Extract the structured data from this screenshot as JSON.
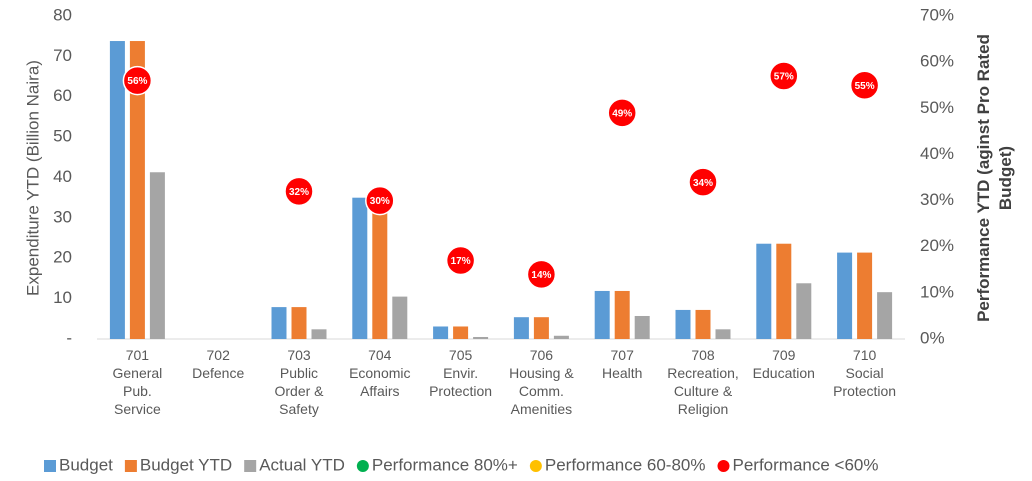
{
  "chart_data": {
    "type": "bar",
    "categories": [
      "701\nGeneral\nPub.\nService",
      "702\nDefence",
      "703\nPublic\nOrder &\nSafety",
      "704\nEconomic\nAffairs",
      "705\nEnvir.\nProtection",
      "706\nHousing &\nComm.\nAmenities",
      "707\nHealth",
      "708\nRecreation,\nCulture &\nReligion",
      "709\nEducation",
      "710\nSocial\nProtection"
    ],
    "ylabel": "Expenditure YTD (Billion Naira)",
    "y2label": "Performance YTD (aginst Pro Rated Budget)",
    "ylim": [
      0,
      80
    ],
    "yticks": [
      {
        "value": 0,
        "label": "-"
      },
      10,
      20,
      30,
      40,
      50,
      60,
      70,
      80
    ],
    "y2lim": [
      0,
      70
    ],
    "y2ticks": [
      {
        "value": 0,
        "label": "0%"
      },
      {
        "value": 10,
        "label": "10%"
      },
      {
        "value": 20,
        "label": "20%"
      },
      {
        "value": 30,
        "label": "30%"
      },
      {
        "value": 40,
        "label": "40%"
      },
      {
        "value": 50,
        "label": "50%"
      },
      {
        "value": 60,
        "label": "60%"
      },
      {
        "value": 70,
        "label": "70%"
      }
    ],
    "grid": false,
    "legend": "bottom",
    "series": [
      {
        "name": "Budget",
        "color": "#5b9bd5",
        "values": [
          73.8,
          0,
          7.9,
          35,
          3.1,
          5.4,
          11.9,
          7.2,
          23.6,
          21.4
        ]
      },
      {
        "name": "Budget YTD",
        "color": "#ed7d31",
        "values": [
          73.8,
          0,
          7.9,
          34.5,
          3.1,
          5.4,
          11.9,
          7.2,
          23.6,
          21.4
        ]
      },
      {
        "name": "Actual YTD",
        "color": "#a5a5a5",
        "values": [
          41.3,
          0,
          2.4,
          10.5,
          0.5,
          0.8,
          5.7,
          2.4,
          13.8,
          11.6
        ]
      },
      {
        "name": "Performance 80%+",
        "color": "#00b050",
        "type": "scatter",
        "axis": "y2",
        "values": [
          null,
          null,
          null,
          null,
          null,
          null,
          null,
          null,
          null,
          null
        ]
      },
      {
        "name": "Performance 60-80%",
        "color": "#ffc000",
        "type": "scatter",
        "axis": "y2",
        "values": [
          null,
          null,
          null,
          null,
          null,
          null,
          null,
          null,
          null,
          null
        ]
      },
      {
        "name": "Performance <60%",
        "color": "#ff0000",
        "type": "scatter",
        "axis": "y2",
        "values": [
          56,
          null,
          32,
          30,
          17,
          14,
          49,
          34,
          57,
          55
        ],
        "value_labels": [
          "56%",
          null,
          "32%",
          "30%",
          "17%",
          "14%",
          "49%",
          "34%",
          "57%",
          "55%"
        ]
      }
    ]
  }
}
